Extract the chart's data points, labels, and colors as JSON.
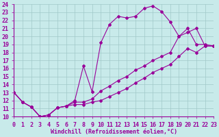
{
  "xlabel": "Windchill (Refroidissement éolien,°C)",
  "bg_color": "#c8eaea",
  "line_color": "#990099",
  "grid_color": "#a0c8c8",
  "xlim": [
    0,
    23
  ],
  "ylim": [
    10,
    24
  ],
  "xticks": [
    0,
    1,
    2,
    3,
    4,
    5,
    6,
    7,
    8,
    9,
    10,
    11,
    12,
    13,
    14,
    15,
    16,
    17,
    18,
    19,
    20,
    21,
    22,
    23
  ],
  "yticks": [
    10,
    11,
    12,
    13,
    14,
    15,
    16,
    17,
    18,
    19,
    20,
    21,
    22,
    23,
    24
  ],
  "line1_x": [
    0,
    1,
    2,
    3,
    4,
    5,
    6,
    7,
    8,
    9,
    10,
    11,
    12,
    13,
    14,
    15,
    16,
    17,
    18,
    19,
    20,
    21,
    22,
    23
  ],
  "line1_y": [
    13.0,
    11.8,
    11.2,
    10.0,
    10.2,
    11.1,
    11.3,
    12.0,
    16.3,
    13.1,
    19.2,
    21.5,
    22.5,
    22.3,
    22.5,
    23.5,
    23.8,
    23.1,
    21.8,
    20.0,
    20.5,
    21.0,
    18.8,
    18.8
  ],
  "line2_x": [
    0,
    1,
    2,
    3,
    4,
    5,
    6,
    7,
    8,
    9,
    10,
    11,
    12,
    13,
    14,
    15,
    16,
    17,
    18,
    19,
    20,
    21,
    22,
    23
  ],
  "line2_y": [
    13.0,
    11.8,
    11.2,
    10.0,
    10.2,
    11.1,
    11.3,
    11.8,
    11.8,
    12.2,
    13.2,
    13.8,
    14.5,
    15.0,
    15.8,
    16.3,
    17.0,
    17.5,
    18.0,
    20.0,
    21.0,
    19.0,
    19.0,
    18.8
  ],
  "line3_x": [
    0,
    1,
    2,
    3,
    4,
    5,
    6,
    7,
    8,
    9,
    10,
    11,
    12,
    13,
    14,
    15,
    16,
    17,
    18,
    19,
    20,
    21,
    22,
    23
  ],
  "line3_y": [
    13.0,
    11.8,
    11.2,
    10.0,
    10.2,
    11.1,
    11.3,
    11.5,
    11.5,
    11.8,
    12.0,
    12.5,
    13.0,
    13.5,
    14.2,
    14.8,
    15.5,
    16.0,
    16.5,
    17.5,
    18.5,
    18.0,
    18.8,
    18.8
  ],
  "font_family": "monospace",
  "font_size": 6.0,
  "marker": "D",
  "marker_size": 2.0,
  "linewidth": 0.8
}
